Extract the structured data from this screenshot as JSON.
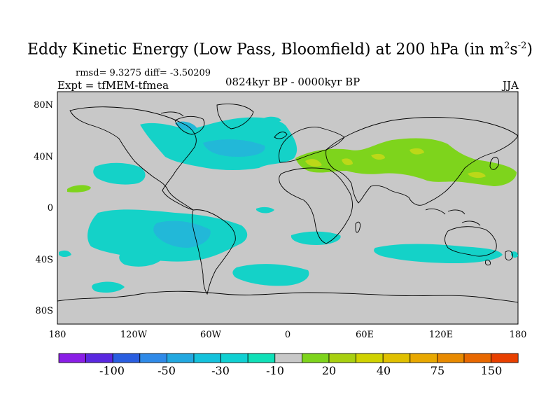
{
  "title": {
    "main": "Eddy Kinetic Energy (Low Pass, Bloomfield) at 200 hPa (in m",
    "sup1": "2",
    "mid": "s",
    "sup2": "-2",
    "end": ")"
  },
  "stats": "rmsd= 9.3275  diff= -3.50209",
  "experiment": "Expt = tfMEM-tfmea",
  "period": "0824kyr BP - 0000kyr BP",
  "season": "JJA",
  "lat_ticks": [
    "80N",
    "40N",
    "0",
    "40S",
    "80S"
  ],
  "lon_ticks": [
    "180",
    "120W",
    "60W",
    "0",
    "60E",
    "120E",
    "180"
  ],
  "colorbar": {
    "colors": [
      "#8a1ee6",
      "#5a28e0",
      "#2a5ee0",
      "#2f8ae8",
      "#22a8e0",
      "#14c2dc",
      "#10d0d2",
      "#10e0b8",
      "#c8c8c8",
      "#7ed41c",
      "#a8d010",
      "#d0d200",
      "#e0c000",
      "#e8a800",
      "#e88a00",
      "#e86800",
      "#e84000"
    ],
    "tick_labels": [
      "-100",
      "-50",
      "-30",
      "-10",
      "20",
      "40",
      "75",
      "150"
    ]
  },
  "map_colors": {
    "background": "#c8c8c8",
    "cyan": "#14d2c8",
    "blue": "#22b8d8",
    "green": "#7ed41c",
    "yellow": "#bcd818"
  }
}
